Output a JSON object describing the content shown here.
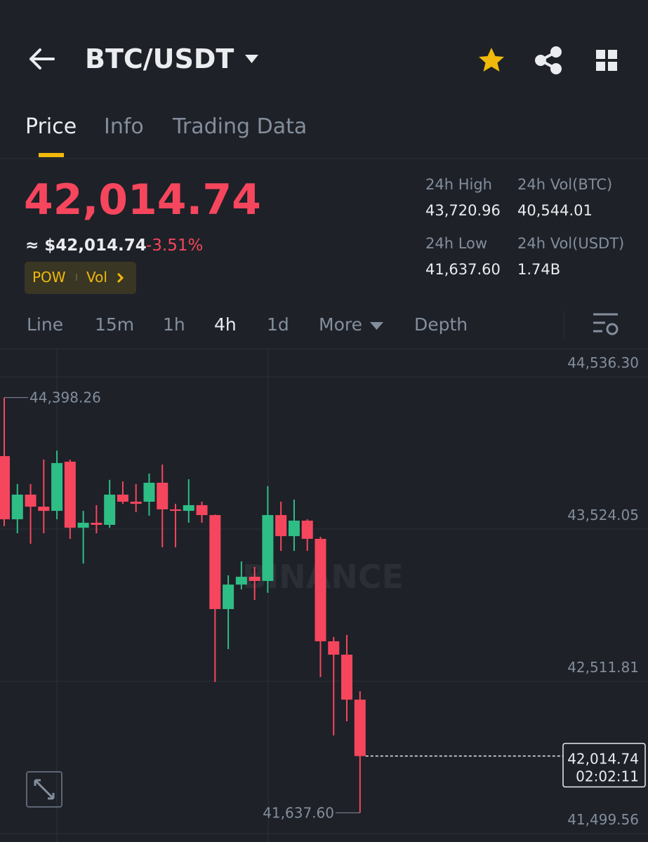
{
  "header": {
    "pair": "BTC/USDT"
  },
  "tabs": [
    "Price",
    "Info",
    "Trading Data"
  ],
  "ticker": {
    "price": "42,014.74",
    "approx_price": "≈ $42,014.74",
    "change": "-3.51%",
    "tags": [
      "POW",
      "Vol"
    ]
  },
  "stats": [
    {
      "label": "24h High",
      "value": "43,720.96"
    },
    {
      "label": "24h Vol(BTC)",
      "value": "40,544.01"
    },
    {
      "label": "24h Low",
      "value": "41,637.60"
    },
    {
      "label": "24h Vol(USDT)",
      "value": "1.74B"
    }
  ],
  "intervals": [
    "Line",
    "15m",
    "1h",
    "4h",
    "1d",
    "More",
    "Depth"
  ],
  "chart_data": {
    "type": "candlestick",
    "watermark": "BINANCE",
    "ylim": [
      41443.6,
      44718.2
    ],
    "yticks": [
      {
        "value": 44536.3,
        "label": "44,536.30"
      },
      {
        "value": 43524.05,
        "label": "43,524.05"
      },
      {
        "value": 42511.81,
        "label": "42,511.81"
      },
      {
        "value": 41499.56,
        "label": "41,499.56"
      }
    ],
    "grid": true,
    "up_color": "#2ebd85",
    "down_color": "#f6465d",
    "candles": [
      {
        "open": 44009,
        "high": 44398.26,
        "low": 43543,
        "close": 43589
      },
      {
        "open": 43589,
        "high": 43823,
        "low": 43496,
        "close": 43753
      },
      {
        "open": 43753,
        "high": 43823,
        "low": 43426,
        "close": 43673
      },
      {
        "open": 43673,
        "high": 43986,
        "low": 43496,
        "close": 43645
      },
      {
        "open": 43645,
        "high": 44046,
        "low": 43589,
        "close": 43963
      },
      {
        "open": 43972,
        "high": 43986,
        "low": 43459,
        "close": 43533
      },
      {
        "open": 43533,
        "high": 43645,
        "low": 43295,
        "close": 43566
      },
      {
        "open": 43566,
        "high": 43683,
        "low": 43496,
        "close": 43552
      },
      {
        "open": 43552,
        "high": 43851,
        "low": 43533,
        "close": 43753
      },
      {
        "open": 43753,
        "high": 43841,
        "low": 43692,
        "close": 43706
      },
      {
        "open": 43706,
        "high": 43823,
        "low": 43636,
        "close": 43692
      },
      {
        "open": 43706,
        "high": 43893,
        "low": 43613,
        "close": 43832
      },
      {
        "open": 43832,
        "high": 43953,
        "low": 43403,
        "close": 43655
      },
      {
        "open": 43655,
        "high": 43692,
        "low": 43403,
        "close": 43645
      },
      {
        "open": 43645,
        "high": 43855,
        "low": 43566,
        "close": 43683
      },
      {
        "open": 43683,
        "high": 43706,
        "low": 43566,
        "close": 43617
      },
      {
        "open": 43617,
        "high": 43620,
        "low": 42507,
        "close": 42992
      },
      {
        "open": 42992,
        "high": 43216,
        "low": 42726,
        "close": 43155
      },
      {
        "open": 43155,
        "high": 43309,
        "low": 43123,
        "close": 43207
      },
      {
        "open": 43207,
        "high": 43272,
        "low": 43053,
        "close": 43179
      },
      {
        "open": 43179,
        "high": 43809,
        "low": 43100,
        "close": 43617
      },
      {
        "open": 43617,
        "high": 43706,
        "low": 43379,
        "close": 43477
      },
      {
        "open": 43477,
        "high": 43720,
        "low": 43379,
        "close": 43580
      },
      {
        "open": 43580,
        "high": 43589,
        "low": 43379,
        "close": 43459
      },
      {
        "open": 43459,
        "high": 43473,
        "low": 42540,
        "close": 42778
      },
      {
        "open": 42778,
        "high": 42806,
        "low": 42152,
        "close": 42689
      },
      {
        "open": 42689,
        "high": 42820,
        "low": 42246,
        "close": 42390
      },
      {
        "open": 42390,
        "high": 42446,
        "low": 41637.6,
        "close": 42014.74
      }
    ],
    "high_marker": {
      "value": 44398.26,
      "label": "44,398.26"
    },
    "low_marker": {
      "value": 41637.6,
      "label": "41,637.60"
    },
    "last_price": {
      "value": 42014.74,
      "label": "42,014.74"
    },
    "countdown": "02:02:11"
  }
}
